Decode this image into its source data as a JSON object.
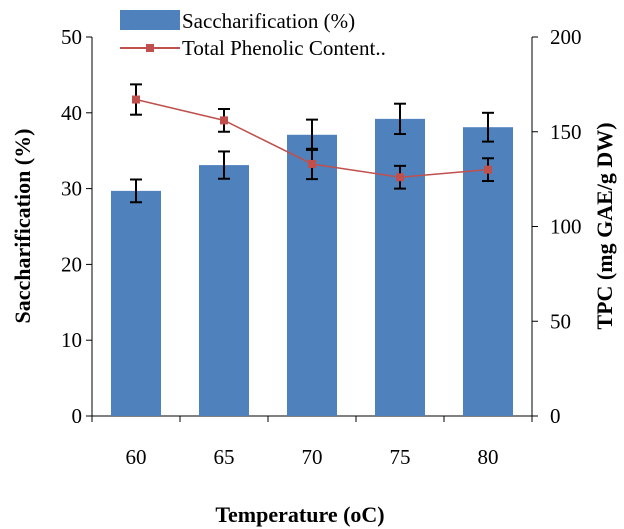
{
  "chart_data": {
    "type": "bar",
    "categories": [
      "60",
      "65",
      "70",
      "75",
      "80"
    ],
    "xlabel": "Temperature (oC)",
    "series": [
      {
        "name": "Saccharification (%)",
        "type": "bar",
        "axis": "left",
        "values": [
          29.7,
          33.1,
          37.1,
          39.2,
          38.1
        ],
        "errors": [
          1.5,
          1.8,
          2.0,
          2.0,
          1.9
        ],
        "color": "#4F81BD"
      },
      {
        "name": "Total Phenolic Content..",
        "type": "line",
        "axis": "right",
        "values": [
          167,
          156,
          133,
          126,
          130
        ],
        "errors": [
          8,
          6,
          8,
          6,
          6
        ],
        "color": "#C0504D"
      }
    ],
    "y_left": {
      "label": "Saccharification (%)",
      "lim": [
        0,
        50
      ],
      "ticks": [
        0,
        10,
        20,
        30,
        40,
        50
      ]
    },
    "y_right": {
      "label": "TPC (mg GAE/g DW)",
      "lim": [
        0,
        200
      ],
      "ticks": [
        0,
        50,
        100,
        150,
        200
      ]
    },
    "grid": false,
    "legend_position": "top-left"
  }
}
